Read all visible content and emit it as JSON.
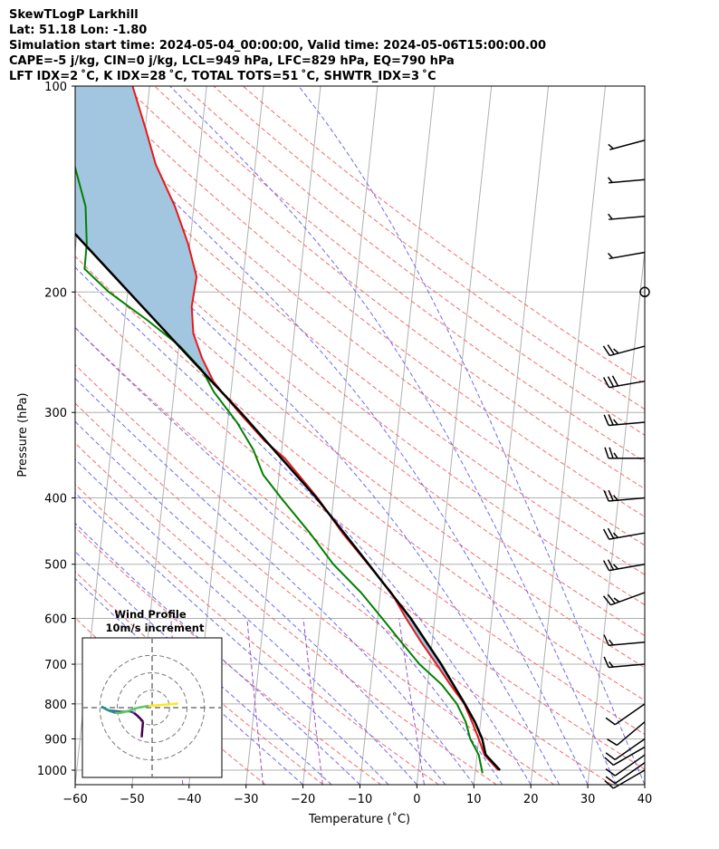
{
  "header": {
    "line1": "SkewTLogP Larkhill",
    "line2": "Lat: 51.18   Lon: -1.80",
    "line3": "Simulation start time: 2024-05-04_00:00:00, Valid time: 2024-05-06T15:00:00.00",
    "line4": "CAPE=-5 j/kg, CIN=0 j/kg, LCL=949 hPa, LFC=829 hPa, EQ=790 hPa",
    "line5": "LFT IDX=2 ˚C, K IDX=28 ˚C, TOTAL TOTS=51 ˚C, SHWTR_IDX=3 ˚C"
  },
  "colors": {
    "temperature": "#e41a1c",
    "dewpoint": "#008000",
    "parcel": "#000000",
    "cape_fill": "#a2c6df",
    "dry_adiabat": "#f26c6c",
    "moist_adiabat": "#6b6bf0",
    "mixing_ratio": "#9a4fc9",
    "isotherm": "#b0b0b0"
  },
  "chart_data": [
    {
      "type": "line",
      "title": "",
      "xlabel": "Temperature (˚C)",
      "ylabel": "Pressure (hPa)",
      "xlim": [
        -60,
        40
      ],
      "ylim": [
        1050,
        100
      ],
      "y_scale": "log",
      "x_ticks": [
        -60,
        -50,
        -40,
        -30,
        -20,
        -10,
        0,
        10,
        20,
        30,
        40
      ],
      "y_ticks": [
        1000,
        900,
        800,
        700,
        600,
        500,
        400,
        300,
        200,
        100
      ],
      "skew": true,
      "grid": true,
      "series": [
        {
          "name": "temperature",
          "points": [
            [
              1000,
              14.0
            ],
            [
              950,
              11.3
            ],
            [
              900,
              10.0
            ],
            [
              850,
              8.5
            ],
            [
              800,
              6.8
            ],
            [
              750,
              4.0
            ],
            [
              700,
              1.2
            ],
            [
              650,
              -1.9
            ],
            [
              600,
              -5.0
            ],
            [
              550,
              -8.1
            ],
            [
              500,
              -12.7
            ],
            [
              450,
              -17.8
            ],
            [
              400,
              -22.8
            ],
            [
              350,
              -29.3
            ],
            [
              330,
              -33.2
            ],
            [
              300,
              -38.2
            ],
            [
              280,
              -41.6
            ],
            [
              270,
              -43.3
            ],
            [
              250,
              -45.7
            ],
            [
              230,
              -47.7
            ],
            [
              210,
              -48.5
            ],
            [
              190,
              -48.2
            ],
            [
              170,
              -50.3
            ],
            [
              150,
              -53.3
            ],
            [
              130,
              -57.5
            ],
            [
              115,
              -60.0
            ],
            [
              100,
              -63.0
            ]
          ]
        },
        {
          "name": "dewpoint",
          "points": [
            [
              1010,
              11.3
            ],
            [
              950,
              10.3
            ],
            [
              900,
              8.5
            ],
            [
              850,
              7.4
            ],
            [
              800,
              5.5
            ],
            [
              750,
              2.5
            ],
            [
              700,
              -1.8
            ],
            [
              650,
              -5.4
            ],
            [
              600,
              -9.2
            ],
            [
              550,
              -13.4
            ],
            [
              500,
              -18.8
            ],
            [
              450,
              -23.5
            ],
            [
              400,
              -29.2
            ],
            [
              370,
              -32.8
            ],
            [
              340,
              -35.0
            ],
            [
              310,
              -38.4
            ],
            [
              280,
              -43.0
            ],
            [
              260,
              -45.5
            ],
            [
              240,
              -49.8
            ],
            [
              220,
              -56.0
            ],
            [
              200,
              -63.3
            ],
            [
              185,
              -68.0
            ],
            [
              170,
              -68.1
            ],
            [
              150,
              -69.0
            ],
            [
              130,
              -71.8
            ],
            [
              115,
              -76.0
            ],
            [
              100,
              -81.4
            ]
          ]
        },
        {
          "name": "parcel",
          "points": [
            [
              1000,
              14.3
            ],
            [
              949,
              11.5
            ],
            [
              900,
              10.6
            ],
            [
              850,
              9.0
            ],
            [
              800,
              6.9
            ],
            [
              700,
              2.0
            ],
            [
              600,
              -4.2
            ],
            [
              500,
              -12.6
            ],
            [
              400,
              -23.0
            ],
            [
              300,
              -37.9
            ],
            [
              250,
              -47.8
            ],
            [
              200,
              -59.8
            ],
            [
              150,
              -75.3
            ],
            [
              125,
              -85.0
            ],
            [
              100,
              -95.8
            ]
          ]
        }
      ],
      "wind_barbs": [
        {
          "p": 1000,
          "speed_kt": 10,
          "dir_deg": 240
        },
        {
          "p": 975,
          "speed_kt": 10,
          "dir_deg": 235
        },
        {
          "p": 950,
          "speed_kt": 10,
          "dir_deg": 235
        },
        {
          "p": 925,
          "speed_kt": 10,
          "dir_deg": 240
        },
        {
          "p": 900,
          "speed_kt": 10,
          "dir_deg": 235
        },
        {
          "p": 850,
          "speed_kt": 10,
          "dir_deg": 230
        },
        {
          "p": 800,
          "speed_kt": 10,
          "dir_deg": 235
        },
        {
          "p": 700,
          "speed_kt": 15,
          "dir_deg": 265
        },
        {
          "p": 650,
          "speed_kt": 15,
          "dir_deg": 265
        },
        {
          "p": 550,
          "speed_kt": 25,
          "dir_deg": 250
        },
        {
          "p": 500,
          "speed_kt": 25,
          "dir_deg": 260
        },
        {
          "p": 450,
          "speed_kt": 25,
          "dir_deg": 260
        },
        {
          "p": 400,
          "speed_kt": 25,
          "dir_deg": 265
        },
        {
          "p": 350,
          "speed_kt": 25,
          "dir_deg": 270
        },
        {
          "p": 310,
          "speed_kt": 25,
          "dir_deg": 265
        },
        {
          "p": 270,
          "speed_kt": 30,
          "dir_deg": 260
        },
        {
          "p": 240,
          "speed_kt": 25,
          "dir_deg": 255
        },
        {
          "p": 200,
          "speed_kt": 0,
          "dir_deg": 0
        },
        {
          "p": 175,
          "speed_kt": 5,
          "dir_deg": 260
        },
        {
          "p": 155,
          "speed_kt": 5,
          "dir_deg": 265
        },
        {
          "p": 137,
          "speed_kt": 5,
          "dir_deg": 265
        },
        {
          "p": 120,
          "speed_kt": 5,
          "dir_deg": 255
        }
      ]
    },
    {
      "type": "scatter",
      "title": "Wind Profile",
      "subtitle": "10m/s increment",
      "rings_ms": [
        10,
        20,
        30
      ],
      "limit_ms": 40,
      "hodograph_uv": [
        [
          -3.0,
          -8.5
        ],
        [
          -2.8,
          -6.0
        ],
        [
          -2.6,
          -4.0
        ],
        [
          -4.0,
          -2.5
        ],
        [
          -5.2,
          -1.5
        ],
        [
          -6.5,
          -1.0
        ],
        [
          -8.5,
          -1.2
        ],
        [
          -10.5,
          -1.0
        ],
        [
          -12.5,
          -0.8
        ],
        [
          -13.5,
          -0.3
        ],
        [
          -14.5,
          0.3
        ],
        [
          -12.0,
          -1.0
        ],
        [
          -10.5,
          -1.5
        ],
        [
          -9.0,
          -1.5
        ],
        [
          -7.0,
          -1.0
        ],
        [
          -4.0,
          0.0
        ],
        [
          -1.0,
          0.5
        ],
        [
          3.0,
          0.8
        ],
        [
          5.5,
          1.0
        ],
        [
          7.5,
          1.2
        ]
      ]
    }
  ]
}
